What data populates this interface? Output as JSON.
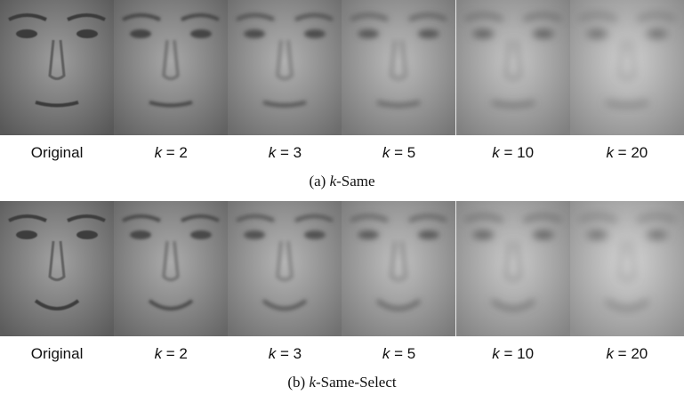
{
  "panels": [
    {
      "caption": "(a) k-Same",
      "labels": [
        "Original",
        "k = 2",
        "k = 3",
        "k = 5",
        "k = 10",
        "k = 20"
      ]
    },
    {
      "caption": "(b) k-Same-Select",
      "labels": [
        "Original",
        "k = 2",
        "k = 3",
        "k = 5",
        "k = 10",
        "k = 20"
      ]
    }
  ]
}
